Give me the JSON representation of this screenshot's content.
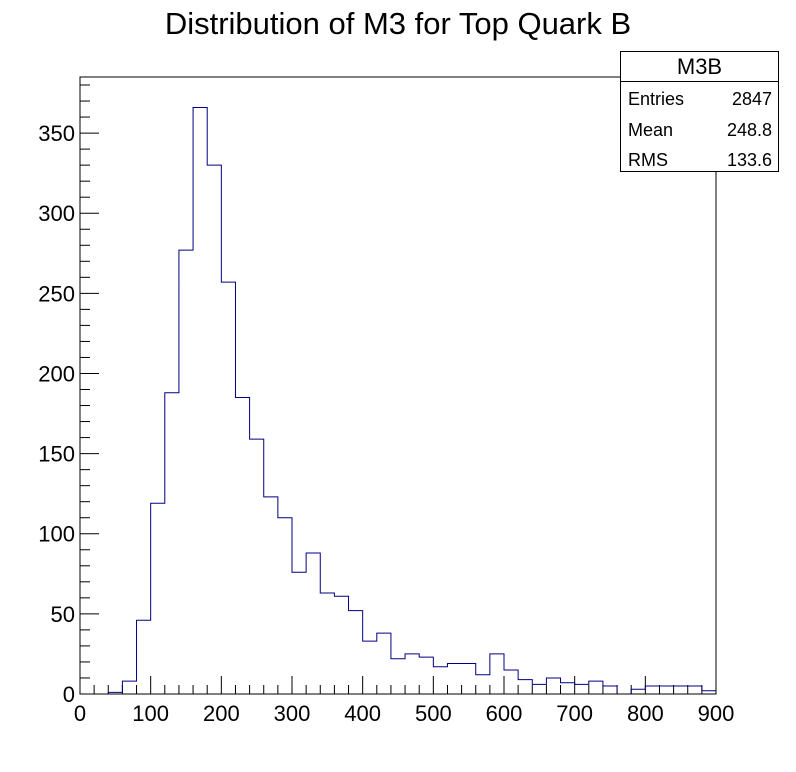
{
  "chart_data": {
    "type": "bar",
    "histogram": true,
    "title": "Distribution of M3 for Top Quark B",
    "xlabel": "",
    "ylabel": "",
    "xlim": [
      0,
      900
    ],
    "ylim": [
      0,
      385
    ],
    "x_ticks": [
      0,
      100,
      200,
      300,
      400,
      500,
      600,
      700,
      800,
      900
    ],
    "y_ticks": [
      0,
      50,
      100,
      150,
      200,
      250,
      300,
      350
    ],
    "bin_width": 20,
    "bin_edges_start": 0,
    "values": [
      0,
      0,
      1,
      8,
      46,
      119,
      188,
      277,
      366,
      330,
      257,
      185,
      159,
      123,
      110,
      76,
      88,
      63,
      61,
      52,
      33,
      38,
      22,
      25,
      23,
      17,
      19,
      19,
      12,
      25,
      15,
      9,
      6,
      10,
      7,
      6,
      8,
      5,
      0,
      3,
      5,
      5,
      5,
      5,
      2
    ],
    "line_color": "#000080",
    "grid": false,
    "legend": "none",
    "stats": {
      "name": "M3B",
      "rows": [
        {
          "label": "Entries",
          "value": "2847"
        },
        {
          "label": "Mean",
          "value": "248.8"
        },
        {
          "label": "RMS",
          "value": "133.6"
        }
      ]
    }
  }
}
